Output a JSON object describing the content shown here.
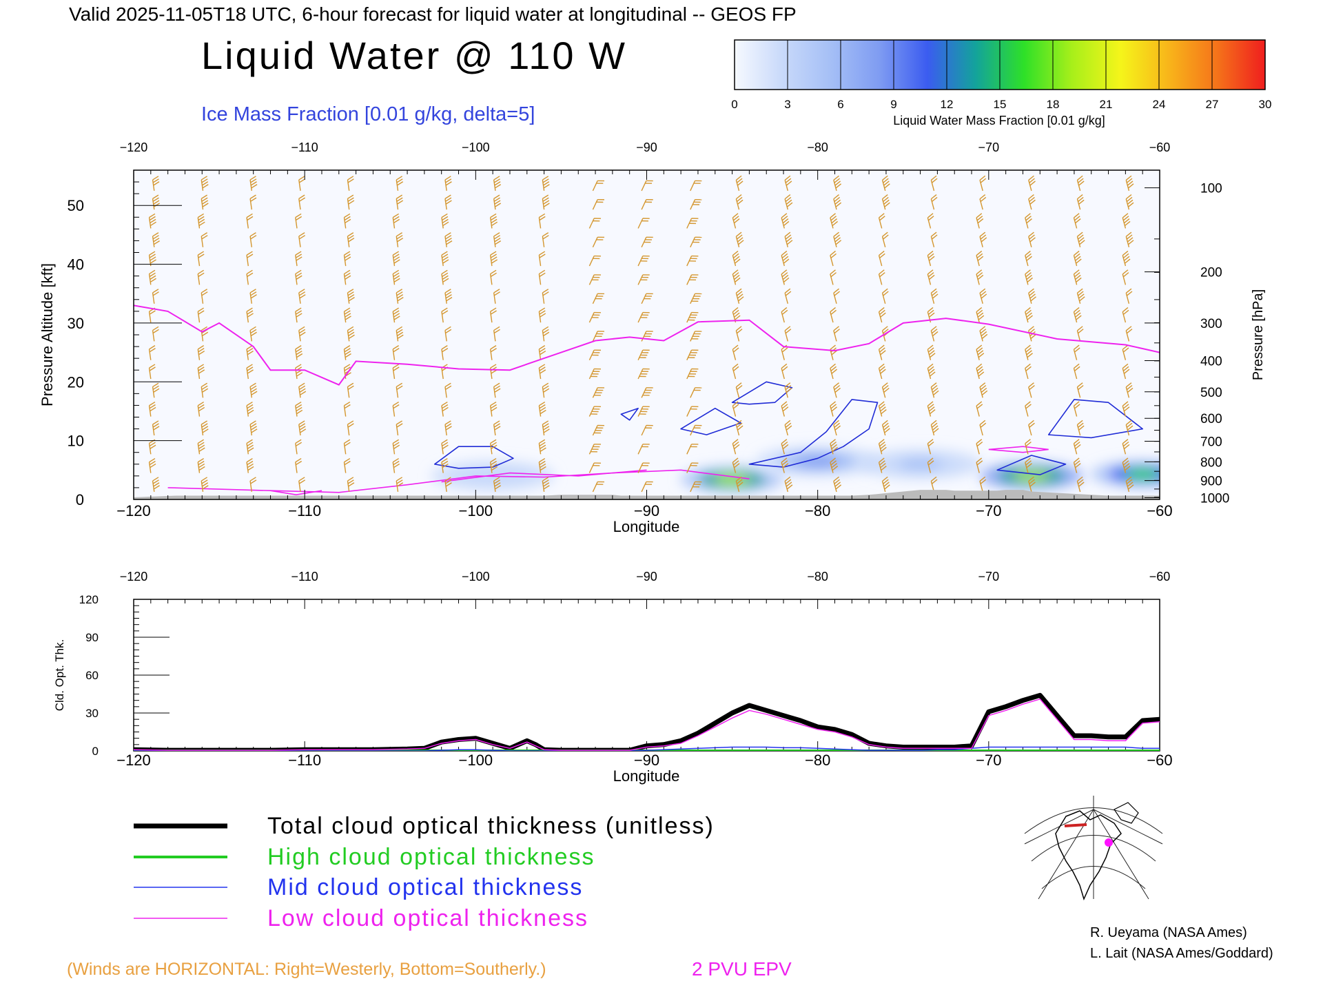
{
  "header": {
    "valid_line": "Valid 2025-11-05T18 UTC, 6-hour forecast for liquid water at longitudinal -- GEOS FP",
    "title": "Liquid Water @ 110 W",
    "subtitle": "Ice Mass Fraction [0.01 g/kg, delta=5]"
  },
  "colorbar": {
    "ticks": [
      "0",
      "3",
      "6",
      "9",
      "12",
      "15",
      "18",
      "21",
      "24",
      "27",
      "30"
    ],
    "label": "Liquid Water Mass Fraction [0.01 g/kg]",
    "colors": [
      "#f6f9ff",
      "#c8d9fa",
      "#a5bff6",
      "#7f9cf2",
      "#3b5cf0",
      "#13a39b",
      "#2ee028",
      "#a8ef1a",
      "#f5f51a",
      "#f8b51a",
      "#f5731a",
      "#ef1e1e"
    ]
  },
  "footer": {
    "winds_note": "(Winds are HORIZONTAL: Right=Westerly, Bottom=Southerly.)",
    "epv_label": "2 PVU EPV",
    "credit_1": "R. Ueyama (NASA Ames)",
    "credit_2": "L. Lait (NASA Ames/Goddard)"
  },
  "legend": [
    {
      "label": "Total cloud optical thickness (unitless)",
      "color": "#000000"
    },
    {
      "label": "High cloud optical thickness",
      "color": "#22cc22"
    },
    {
      "label": "Mid cloud optical thickness",
      "color": "#2233ee"
    },
    {
      "label": "Low cloud optical thickness",
      "color": "#ee22ee"
    }
  ],
  "chart_data": [
    {
      "type": "heatmap",
      "title": "Liquid Water @ 110 W",
      "xlabel": "Longitude",
      "ylabel": "Pressure Altitude [kft]",
      "y2label": "Pressure [hPa]",
      "xlim": [
        -120,
        -60
      ],
      "ylim": [
        0,
        56
      ],
      "x_ticks": [
        "−120",
        "−110",
        "−100",
        "−90",
        "−80",
        "−70",
        "−60"
      ],
      "x_tick_values": [
        -120,
        -110,
        -100,
        -90,
        -80,
        -70,
        -60
      ],
      "y_ticks": [
        "0",
        "10",
        "20",
        "30",
        "40",
        "50"
      ],
      "y_tick_values": [
        0,
        10,
        20,
        30,
        40,
        50
      ],
      "pressure_ticks": [
        "100",
        "200",
        "300",
        "400",
        "500",
        "600",
        "700",
        "800",
        "900",
        "1000"
      ],
      "pressure_tick_kft": [
        53,
        38.7,
        30,
        23.6,
        18.3,
        13.8,
        9.9,
        6.4,
        3.2,
        0.3
      ],
      "liquid_water_blobs": [
        {
          "lon": -85,
          "kft": 3.4,
          "peak": 18
        },
        {
          "lon": -67.5,
          "kft": 4.0,
          "peak": 20
        },
        {
          "lon": -61,
          "kft": 4.3,
          "peak": 16
        },
        {
          "lon": -80,
          "kft": 6.5,
          "peak": 7
        },
        {
          "lon": -74,
          "kft": 6.0,
          "peak": 5
        },
        {
          "lon": -99,
          "kft": 4.0,
          "peak": 4
        }
      ],
      "epv_2pvu_kft": [
        [
          -120,
          33
        ],
        [
          -118,
          32
        ],
        [
          -116,
          28.5
        ],
        [
          -115,
          30
        ],
        [
          -113,
          26
        ],
        [
          -112,
          22
        ],
        [
          -110,
          22
        ],
        [
          -108,
          19.5
        ],
        [
          -107,
          23.5
        ],
        [
          -104,
          23
        ],
        [
          -101,
          22.2
        ],
        [
          -98,
          22
        ],
        [
          -96,
          24
        ],
        [
          -93,
          27
        ],
        [
          -91,
          27.6
        ],
        [
          -89,
          27
        ],
        [
          -87,
          30.2
        ],
        [
          -84,
          30.5
        ],
        [
          -82,
          26
        ],
        [
          -79,
          25.3
        ],
        [
          -77,
          26.5
        ],
        [
          -75,
          30
        ],
        [
          -72.5,
          30.8
        ],
        [
          -70,
          29.8
        ],
        [
          -66,
          27.3
        ],
        [
          -62,
          26.3
        ],
        [
          -60,
          25
        ]
      ],
      "surface_pressure_hpa": [
        [
          -120,
          1000
        ],
        [
          -117.5,
          990
        ],
        [
          -96,
          990
        ],
        [
          -95,
          985
        ],
        [
          -92,
          985
        ],
        [
          -91.5,
          990
        ],
        [
          -78,
          990
        ],
        [
          -77,
          985
        ],
        [
          -76,
          975
        ],
        [
          -75,
          965
        ],
        [
          -74,
          955
        ],
        [
          -72.5,
          955
        ],
        [
          -72,
          960
        ],
        [
          -69.5,
          960
        ],
        [
          -69,
          955
        ],
        [
          -68,
          955
        ],
        [
          -67.5,
          965
        ],
        [
          -63,
          990
        ],
        [
          -60,
          990
        ]
      ]
    },
    {
      "type": "line",
      "xlabel": "Longitude",
      "ylabel": "Cld. Opt. Thk.",
      "xlim": [
        -120,
        -60
      ],
      "ylim": [
        0,
        120
      ],
      "x_ticks": [
        "−120",
        "−110",
        "−100",
        "−90",
        "−80",
        "−70",
        "−60"
      ],
      "y_ticks": [
        "0",
        "30",
        "60",
        "90",
        "120"
      ],
      "y_tick_values": [
        0,
        30,
        60,
        90,
        120
      ],
      "x": [
        -120,
        -118,
        -116,
        -114,
        -112,
        -110,
        -108,
        -106,
        -104,
        -103,
        -102,
        -101,
        -100,
        -99,
        -98,
        -97,
        -96.5,
        -96,
        -95,
        -94,
        -93,
        -92,
        -91,
        -90,
        -89,
        -88,
        -87,
        -86,
        -85,
        -84,
        -83,
        -82,
        -81,
        -80,
        -79,
        -78,
        -77,
        -76,
        -75,
        -74,
        -73,
        -72,
        -71,
        -70,
        -69,
        -68,
        -67,
        -66,
        -65,
        -64,
        -63,
        -62,
        -61,
        -60
      ],
      "series": [
        {
          "name": "Total cloud optical thickness (unitless)",
          "values": [
            1,
            0.5,
            0.5,
            0.5,
            0.5,
            1,
            1,
            1,
            1.5,
            2,
            7,
            9,
            10,
            6,
            2,
            8,
            5,
            1,
            0.5,
            0.5,
            0.5,
            0.5,
            0.5,
            4,
            5,
            8,
            14,
            22,
            30,
            36,
            32,
            28,
            24,
            19,
            17,
            13,
            6,
            4,
            3,
            3,
            3,
            3,
            4,
            31,
            35,
            40,
            44,
            28,
            12,
            12,
            11,
            11,
            24,
            25
          ]
        },
        {
          "name": "High cloud optical thickness",
          "values": [
            0,
            0,
            0,
            0,
            0,
            0,
            0,
            0,
            0,
            0,
            0,
            0,
            0,
            0,
            0,
            0,
            0,
            0,
            0,
            0,
            0,
            0,
            0,
            0,
            0,
            0,
            0,
            0,
            0,
            0,
            0,
            0,
            0,
            0,
            0,
            0,
            0,
            0,
            0,
            0,
            0,
            0,
            0,
            0,
            0,
            0,
            0,
            0,
            0,
            0,
            0,
            0,
            0,
            0
          ]
        },
        {
          "name": "Mid cloud optical thickness",
          "values": [
            0,
            0,
            0,
            0,
            0,
            0,
            0,
            0,
            0,
            0,
            0.5,
            1,
            1,
            0.5,
            0,
            0,
            0,
            0,
            0,
            0,
            0,
            0,
            0,
            0.5,
            1,
            1.5,
            2,
            2.5,
            3,
            3,
            3,
            2.5,
            2.5,
            2,
            1.5,
            1,
            0.5,
            0.5,
            0.5,
            0.5,
            1,
            1,
            2,
            3,
            3,
            3,
            3,
            3,
            3,
            3,
            3,
            3,
            2,
            2
          ]
        },
        {
          "name": "Low cloud optical thickness",
          "values": [
            1,
            0.5,
            0.5,
            0.5,
            0.5,
            1,
            1,
            1,
            1.5,
            2,
            6,
            8,
            9,
            5,
            2,
            7,
            4,
            1,
            0.5,
            0.5,
            0.5,
            0.5,
            0.5,
            3,
            4,
            6,
            12,
            19,
            26,
            32,
            29,
            25,
            21,
            17,
            15,
            11,
            5,
            3,
            2,
            2,
            2,
            2,
            2,
            28,
            32,
            37,
            41,
            25,
            9,
            9,
            8,
            8,
            22,
            23
          ]
        }
      ]
    }
  ]
}
